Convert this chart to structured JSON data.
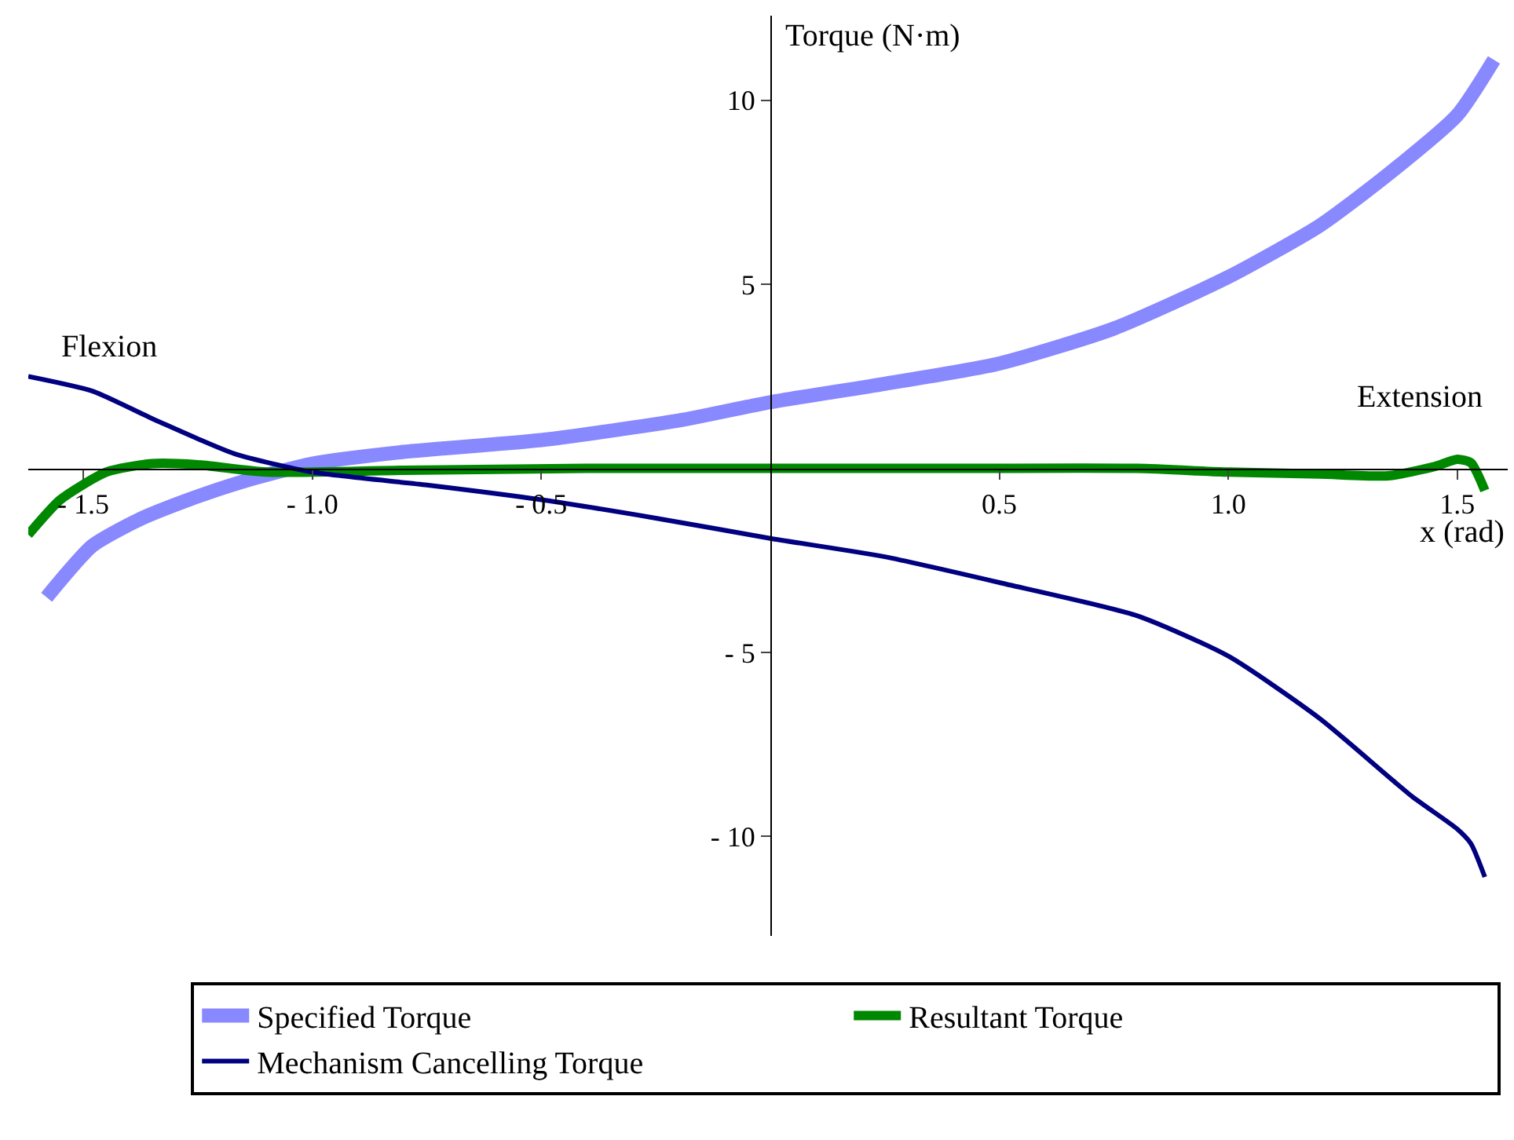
{
  "chart_data": {
    "type": "line",
    "xlabel": "x (rad)",
    "ylabel": "Torque (N·m)",
    "xlim": [
      -1.62,
      1.61
    ],
    "ylim": [
      -12.7,
      12.3
    ],
    "xticks": [
      {
        "value": -1.5,
        "label": "- 1.5"
      },
      {
        "value": -1.0,
        "label": "- 1.0"
      },
      {
        "value": -0.5,
        "label": "- 0.5"
      },
      {
        "value": 0.5,
        "label": "0.5"
      },
      {
        "value": 1.0,
        "label": "1.0"
      },
      {
        "value": 1.5,
        "label": "1.5"
      }
    ],
    "yticks": [
      {
        "value": -10,
        "label": "- 10"
      },
      {
        "value": -5,
        "label": "- 5"
      },
      5,
      10
    ],
    "legend": "bottom",
    "marker": "none",
    "annotations": [
      "Flexion",
      "Extension"
    ],
    "series": [
      {
        "name": "Specified Torque",
        "color": "#8888ff",
        "x": [
          -1.58,
          -1.48,
          -1.38,
          -1.27,
          -1.15,
          -1.0,
          -0.8,
          -0.5,
          -0.2,
          0,
          0.25,
          0.5,
          0.75,
          1.0,
          1.2,
          1.35,
          1.5,
          1.58
        ],
        "values": [
          -3.5,
          -2.1,
          -1.4,
          -0.85,
          -0.35,
          0.13,
          0.45,
          0.77,
          1.3,
          1.8,
          2.3,
          2.85,
          3.8,
          5.2,
          6.6,
          8.0,
          9.6,
          11.1
        ]
      },
      {
        "name": "Resultant Torque",
        "color": "#008800",
        "x": [
          -1.62,
          -1.55,
          -1.45,
          -1.35,
          -1.25,
          -1.1,
          -0.8,
          -0.4,
          0,
          0.4,
          0.8,
          1.0,
          1.2,
          1.35,
          1.45,
          1.5,
          1.53,
          1.56
        ],
        "values": [
          -1.8,
          -0.85,
          -0.1,
          0.13,
          0.1,
          -0.1,
          -0.05,
          0,
          0,
          0,
          0,
          -0.1,
          -0.15,
          -0.2,
          0.05,
          0.25,
          0.15,
          -0.6
        ]
      },
      {
        "name": "Mechanism Cancelling Torque",
        "color": "#000080",
        "x": [
          -1.62,
          -1.48,
          -1.34,
          -1.17,
          -1.0,
          -0.75,
          -0.5,
          -0.25,
          0,
          0.25,
          0.5,
          0.8,
          1.0,
          1.2,
          1.4,
          1.5,
          1.53,
          1.56
        ],
        "values": [
          2.5,
          2.1,
          1.3,
          0.4,
          -0.1,
          -0.45,
          -0.85,
          -1.35,
          -1.9,
          -2.4,
          -3.1,
          -4.0,
          -5.1,
          -6.8,
          -8.9,
          -9.8,
          -10.2,
          -11.1
        ]
      }
    ]
  }
}
